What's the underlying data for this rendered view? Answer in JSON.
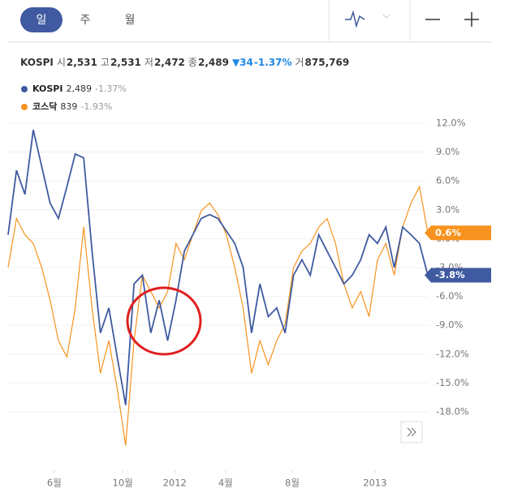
{
  "tabs": [
    "일",
    "주",
    "월"
  ],
  "quote": {
    "name": "KOSPI",
    "open_label": "시",
    "open": "2,531",
    "high_label": "고",
    "high": "2,531",
    "low_label": "저",
    "low": "2,472",
    "close_label": "종",
    "close": "2,489",
    "change": "▼34",
    "change_pct": "-1.37%",
    "volume_label": "거",
    "volume": "875,769"
  },
  "chart_data": {
    "type": "line",
    "x": [
      0,
      2,
      4,
      6,
      8,
      10,
      12,
      14,
      16,
      18,
      20,
      22,
      24,
      26,
      28,
      30,
      32,
      34,
      36,
      38,
      40,
      42,
      44,
      46,
      48,
      50,
      52,
      54,
      56,
      58,
      60,
      62,
      64,
      66,
      68,
      70,
      72,
      74,
      76,
      78,
      80,
      82,
      84,
      86,
      88,
      90,
      92,
      94,
      96,
      98,
      100
    ],
    "xlim": [
      0,
      100
    ],
    "xticks": [
      {
        "value": 11,
        "label": "6월"
      },
      {
        "value": 27.3,
        "label": "10월"
      },
      {
        "value": 39.7,
        "label": "2012"
      },
      {
        "value": 51.8,
        "label": "4월"
      },
      {
        "value": 67.7,
        "label": "8월"
      },
      {
        "value": 87.4,
        "label": "2013"
      }
    ],
    "ylim": [
      -22.5,
      13
    ],
    "yticks": [
      {
        "value": 12,
        "label": "12.0%"
      },
      {
        "value": 9,
        "label": "9.0%"
      },
      {
        "value": 6,
        "label": "6.0%"
      },
      {
        "value": 3,
        "label": "3.0%"
      },
      {
        "value": 0,
        "label": "0.0%"
      },
      {
        "value": -3,
        "label": "-3.0%"
      },
      {
        "value": -6,
        "label": "-6.0%"
      },
      {
        "value": -9,
        "label": "-9.0%"
      },
      {
        "value": -12,
        "label": "-12.0%"
      },
      {
        "value": -15,
        "label": "-15.0%"
      },
      {
        "value": -18,
        "label": "-18.0%"
      }
    ],
    "grid": true,
    "series": [
      {
        "name": "KOSPI",
        "price": "2,489",
        "change": "-1.37%",
        "color": "#3f5aa0",
        "last_label": "-3.8%",
        "values": [
          0.4,
          7.1,
          4.6,
          11.3,
          7.5,
          3.7,
          2.1,
          5.4,
          8.8,
          8.4,
          -1.3,
          -9.8,
          -7.2,
          -12.3,
          -17.3,
          -4.7,
          -3.8,
          -9.8,
          -6.4,
          -10.6,
          -6.4,
          -1.3,
          0.4,
          2.1,
          2.5,
          2.1,
          0.8,
          -0.5,
          -3.0,
          -9.8,
          -4.7,
          -8.1,
          -7.2,
          -9.8,
          -3.8,
          -2.2,
          -3.8,
          0.4,
          -1.3,
          -3.0,
          -4.7,
          -3.8,
          -2.2,
          0.4,
          -0.5,
          1.2,
          -3.0,
          1.2,
          0.4,
          -0.5,
          -3.8
        ]
      },
      {
        "name": "코스닥",
        "price": "839",
        "change": "-1.93%",
        "color": "#f7931e",
        "last_label": "0.6%",
        "values": [
          -3.0,
          2.1,
          0.4,
          -0.5,
          -3.0,
          -6.4,
          -10.6,
          -12.3,
          -7.2,
          1.2,
          -7.2,
          -14.0,
          -10.6,
          -15.6,
          -21.5,
          -10.6,
          -3.8,
          -5.5,
          -7.2,
          -5.5,
          -0.5,
          -2.2,
          0.4,
          2.9,
          3.7,
          2.5,
          0.4,
          -3.0,
          -7.2,
          -14.0,
          -10.6,
          -13.1,
          -10.6,
          -8.9,
          -3.0,
          -1.3,
          -0.5,
          1.2,
          2.1,
          -0.5,
          -4.7,
          -7.2,
          -5.5,
          -8.1,
          -2.2,
          -0.5,
          -3.8,
          1.2,
          3.7,
          5.4,
          0.6
        ]
      }
    ]
  }
}
